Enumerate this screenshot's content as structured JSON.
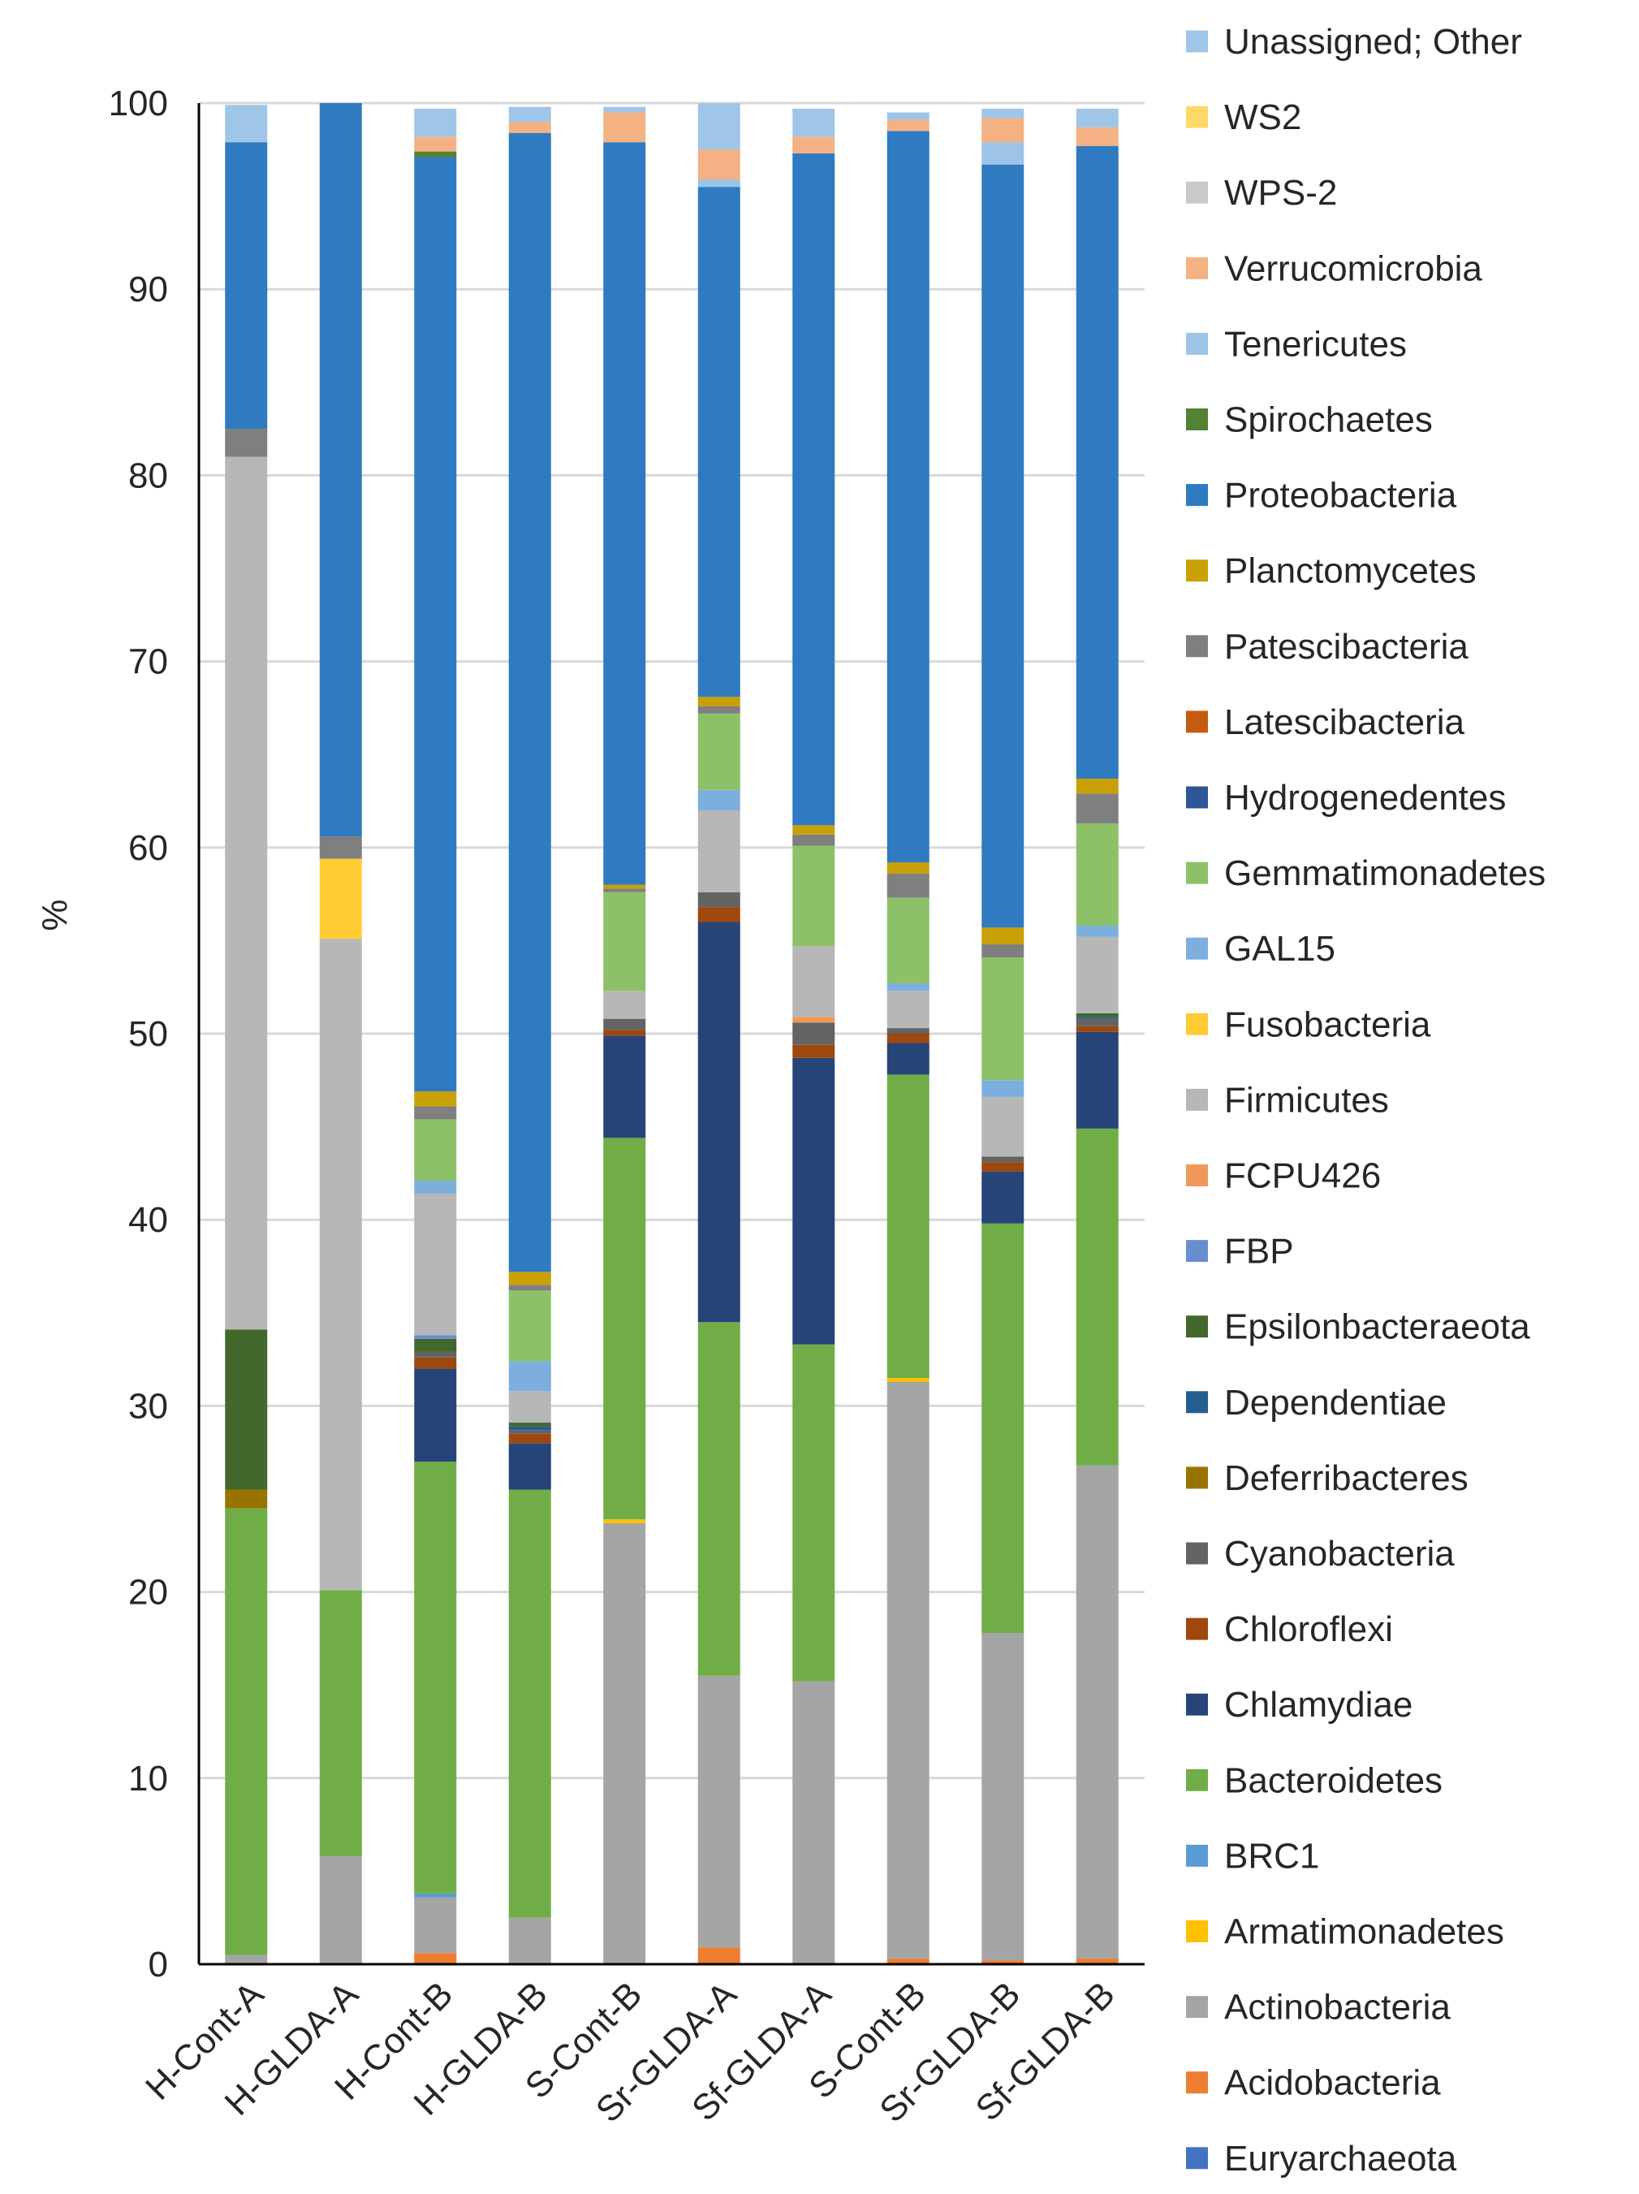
{
  "chart_data": {
    "type": "bar",
    "stacked": true,
    "title": "",
    "xlabel": "",
    "ylabel": "%",
    "ylim": [
      0,
      100
    ],
    "yticks": [
      0,
      10,
      20,
      30,
      40,
      50,
      60,
      70,
      80,
      90,
      100
    ],
    "grid": true,
    "legend_position": "right",
    "categories": [
      "H-Cont-A",
      "H-GLDA-A",
      "H-Cont-B",
      "H-GLDA-B",
      "S-Cont-B",
      "Sr-GLDA-A",
      "Sf-GLDA-A",
      "S-Cont-B",
      "Sr-GLDA-B",
      "Sf-GLDA-B"
    ],
    "series": [
      {
        "name": "Euryarchaeota",
        "color": "#4472c4",
        "values": [
          0,
          0,
          0,
          0,
          0,
          0,
          0,
          0,
          0,
          0
        ]
      },
      {
        "name": "Acidobacteria",
        "color": "#ed7d31",
        "values": [
          0,
          0,
          0.6,
          0,
          0,
          0.9,
          0,
          0.3,
          0.2,
          0.3
        ]
      },
      {
        "name": "Actinobacteria",
        "color": "#a5a5a5",
        "values": [
          0.5,
          5.8,
          3.0,
          2.5,
          23.7,
          14.6,
          15.2,
          31.0,
          17.6,
          26.5
        ]
      },
      {
        "name": "Armatimonadetes",
        "color": "#ffc000",
        "values": [
          0,
          0,
          0,
          0,
          0.2,
          0,
          0,
          0.2,
          0,
          0
        ]
      },
      {
        "name": "BRC1",
        "color": "#5b9bd5",
        "values": [
          0,
          0,
          0.2,
          0,
          0,
          0,
          0,
          0,
          0,
          0
        ]
      },
      {
        "name": "Bacteroidetes",
        "color": "#70ad47",
        "values": [
          24.0,
          14.3,
          23.2,
          23.0,
          20.5,
          19.0,
          18.1,
          16.3,
          22.0,
          18.1
        ]
      },
      {
        "name": "Chlamydiae",
        "color": "#264478",
        "values": [
          0,
          0,
          5.0,
          2.5,
          5.5,
          21.5,
          15.4,
          1.7,
          2.8,
          5.2
        ]
      },
      {
        "name": "Chloroflexi",
        "color": "#9e480e",
        "values": [
          0,
          0,
          0.6,
          0.5,
          0.3,
          0.8,
          0.7,
          0.5,
          0.5,
          0.3
        ]
      },
      {
        "name": "Cyanobacteria",
        "color": "#636363",
        "values": [
          0,
          0,
          0.3,
          0.2,
          0.6,
          0.8,
          1.2,
          0.3,
          0.3,
          0.4
        ]
      },
      {
        "name": "Deferribacteres",
        "color": "#997300",
        "values": [
          1.0,
          0,
          0,
          0,
          0,
          0,
          0,
          0,
          0,
          0
        ]
      },
      {
        "name": "Dependentiae",
        "color": "#255e91",
        "values": [
          0,
          0,
          0,
          0.2,
          0,
          0,
          0,
          0,
          0,
          0.1
        ]
      },
      {
        "name": "Epsilonbacteraeota",
        "color": "#43682b",
        "values": [
          8.6,
          0,
          0.7,
          0.2,
          0,
          0,
          0,
          0,
          0,
          0.2
        ]
      },
      {
        "name": "FBP",
        "color": "#698ed0",
        "values": [
          0,
          0,
          0.2,
          0,
          0,
          0,
          0,
          0,
          0,
          0
        ]
      },
      {
        "name": "FCPU426",
        "color": "#f1975a",
        "values": [
          0,
          0,
          0,
          0,
          0,
          0,
          0.3,
          0,
          0,
          0
        ]
      },
      {
        "name": "Firmicutes",
        "color": "#b7b7b7",
        "values": [
          46.9,
          35.0,
          7.6,
          1.7,
          1.5,
          4.4,
          3.8,
          2.0,
          3.2,
          4.1
        ]
      },
      {
        "name": "Fusobacteria",
        "color": "#ffcd33",
        "values": [
          0,
          4.3,
          0,
          0,
          0,
          0,
          0,
          0,
          0,
          0
        ]
      },
      {
        "name": "GAL15",
        "color": "#7cafdd",
        "values": [
          0,
          0,
          0.7,
          1.6,
          0,
          1.1,
          0,
          0.4,
          0.9,
          0.6
        ]
      },
      {
        "name": "Gemmatimonadetes",
        "color": "#8cc168",
        "values": [
          0,
          0,
          3.3,
          3.8,
          5.3,
          4.1,
          5.4,
          4.6,
          6.6,
          5.5
        ]
      },
      {
        "name": "Hydrogenedentes",
        "color": "#2e5597",
        "values": [
          0,
          0,
          0,
          0,
          0,
          0,
          0,
          0,
          0,
          0
        ]
      },
      {
        "name": "Latescibacteria",
        "color": "#c55a11",
        "values": [
          0,
          0,
          0,
          0,
          0,
          0,
          0,
          0,
          0,
          0
        ]
      },
      {
        "name": "Patescibacteria",
        "color": "#7f7f7f",
        "values": [
          1.5,
          1.2,
          0.7,
          0.3,
          0.2,
          0.4,
          0.6,
          1.3,
          0.7,
          1.6
        ]
      },
      {
        "name": "Planctomycetes",
        "color": "#c9a006",
        "values": [
          0,
          0,
          0.8,
          0.7,
          0.2,
          0.5,
          0.5,
          0.6,
          0.9,
          0.8
        ]
      },
      {
        "name": "Proteobacteria",
        "color": "#2f7ac0",
        "values": [
          15.4,
          39.4,
          50.2,
          61.2,
          39.9,
          27.4,
          36.1,
          39.3,
          41.0,
          34.0
        ]
      },
      {
        "name": "Spirochaetes",
        "color": "#548235",
        "values": [
          0,
          0,
          0.3,
          0,
          0,
          0,
          0,
          0,
          0,
          0
        ]
      },
      {
        "name": "Tenericutes",
        "color": "#9dc3e6",
        "values": [
          0,
          0,
          0,
          0,
          0,
          0.4,
          0,
          0,
          1.2,
          0
        ]
      },
      {
        "name": "Verrucomicrobia",
        "color": "#f4b183",
        "values": [
          0,
          0,
          0.8,
          0.6,
          1.6,
          1.6,
          0.9,
          0.6,
          1.3,
          1.0
        ]
      },
      {
        "name": "WPS-2",
        "color": "#c9c9c9",
        "values": [
          0,
          0,
          0,
          0,
          0,
          0,
          0,
          0,
          0,
          0
        ]
      },
      {
        "name": "WS2",
        "color": "#ffd966",
        "values": [
          0,
          0,
          0,
          0,
          0,
          0,
          0,
          0,
          0,
          0
        ]
      },
      {
        "name": "Unassigned; Other",
        "color": "#9fc5e8",
        "values": [
          2.0,
          0,
          1.5,
          0.8,
          0.3,
          2.5,
          1.5,
          0.4,
          0.5,
          1.0
        ]
      }
    ]
  }
}
